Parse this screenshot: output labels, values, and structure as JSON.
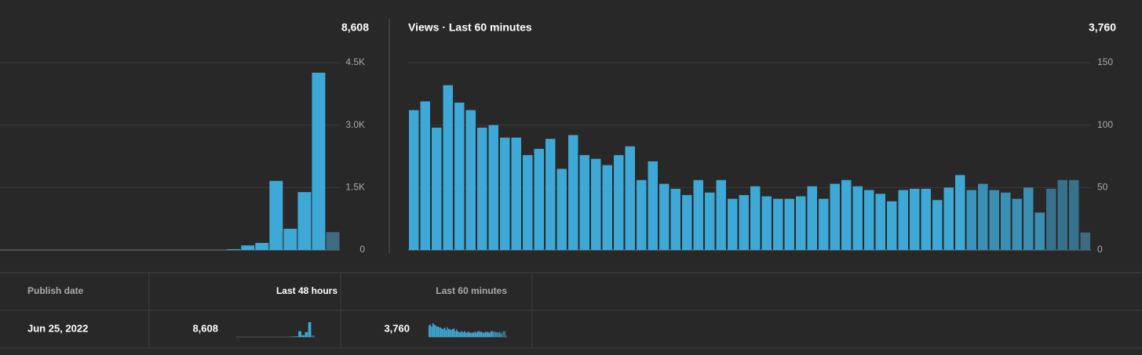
{
  "chart_data": [
    {
      "type": "bar",
      "total": "8,608",
      "values": [
        0,
        0,
        0,
        0,
        0,
        0,
        0,
        0,
        0,
        0,
        0,
        0,
        0,
        0,
        0,
        0,
        20,
        110,
        170,
        1660,
        510,
        1390,
        4260,
        430
      ],
      "colors": [
        "#3ea9d6",
        "#3ea9d6",
        "#3ea9d6",
        "#3ea9d6",
        "#3ea9d6",
        "#3ea9d6",
        "#3ea9d6",
        "#3ea9d6",
        "#3ea9d6",
        "#3ea9d6",
        "#3ea9d6",
        "#3ea9d6",
        "#3ea9d6",
        "#3ea9d6",
        "#3ea9d6",
        "#3ea9d6",
        "#3ea9d6",
        "#3ea9d6",
        "#3ea9d6",
        "#3ea9d6",
        "#3ea9d6",
        "#3ea9d6",
        "#3ea9d6",
        "#3d6b80"
      ],
      "ylim": [
        0,
        4500
      ],
      "yticks": [
        0,
        {
          "value": 1500,
          "label": "1.5K"
        },
        {
          "value": 3000,
          "label": "3.0K"
        },
        {
          "value": 4500,
          "label": "4.5K"
        }
      ],
      "grid": true
    },
    {
      "type": "bar",
      "title": "Views · Last 60 minutes",
      "total": "3,760",
      "values": [
        112,
        119,
        98,
        132,
        118,
        112,
        98,
        100,
        90,
        90,
        76,
        81,
        89,
        65,
        92,
        76,
        73,
        68,
        76,
        83,
        56,
        71,
        53,
        49,
        44,
        56,
        46,
        56,
        41,
        44,
        51,
        43,
        41,
        41,
        43,
        51,
        41,
        53,
        56,
        51,
        48,
        45,
        39,
        48,
        49,
        49,
        40,
        50,
        60,
        48,
        53,
        48,
        46,
        41,
        50,
        30,
        49,
        56,
        56,
        14
      ],
      "colors": [
        "#3ea9d6",
        "#3ea9d6",
        "#3ea9d6",
        "#3ea9d6",
        "#3ea9d6",
        "#3ea9d6",
        "#3ea9d6",
        "#3ea9d6",
        "#3ea9d6",
        "#3ea9d6",
        "#3ea9d6",
        "#3ea9d6",
        "#3ea9d6",
        "#3ea9d6",
        "#3ea9d6",
        "#3ea9d6",
        "#3ea9d6",
        "#3ea9d6",
        "#3ea9d6",
        "#3ea9d6",
        "#3ea9d6",
        "#3ea9d6",
        "#3ea9d6",
        "#3ea9d6",
        "#3ea9d6",
        "#3ea9d6",
        "#3ea9d6",
        "#3ea9d6",
        "#3ea9d6",
        "#3ea9d6",
        "#3ea9d6",
        "#3ea9d6",
        "#3ea9d6",
        "#3ea9d6",
        "#3ea9d6",
        "#3ea9d6",
        "#3ea9d6",
        "#3ea9d6",
        "#3ea9d6",
        "#3ea9d6",
        "#3ea9d6",
        "#3ea9d6",
        "#3ea9d6",
        "#3ea9d6",
        "#3ea9d6",
        "#3ea9d6",
        "#3ea9d6",
        "#3ea9d6",
        "#3ea9d6",
        "#3a95bd",
        "#3a8fb3",
        "#3a8fb3",
        "#3a8fb3",
        "#3a8fb3",
        "#3a8fb3",
        "#3a8fb3",
        "#37728c",
        "#37728c",
        "#37728c",
        "#3d6b80"
      ],
      "ylim": [
        0,
        150
      ],
      "yticks": [
        0,
        50,
        100,
        150
      ],
      "grid": true
    }
  ],
  "table": {
    "headers": [
      "Publish date",
      "Last 48 hours",
      "Last 60 minutes"
    ],
    "rows": [
      [
        "Jun 25, 2022",
        "8,608",
        "3,760"
      ]
    ]
  }
}
